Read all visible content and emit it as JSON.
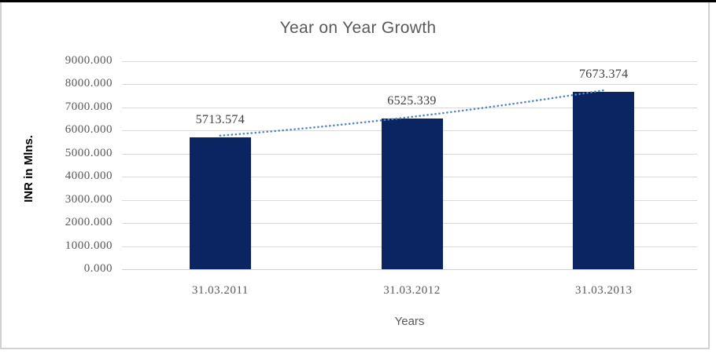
{
  "window": {
    "background": "#ffffff",
    "top_border_color": "#000000",
    "panel_border_color": "#d2d2d2"
  },
  "chart_data": {
    "type": "bar",
    "title": "Year on Year Growth",
    "xlabel": "Years",
    "ylabel": "INR in Mlns.",
    "categories": [
      "31.03.2011",
      "31.03.2012",
      "31.03.2013"
    ],
    "values": [
      5713.574,
      6525.339,
      7673.374
    ],
    "data_labels": [
      "5713.574",
      "6525.339",
      "7673.374"
    ],
    "ylim": [
      0,
      9000
    ],
    "ytick_step": 1000,
    "ytick_labels": [
      "0.000",
      "1000.000",
      "2000.000",
      "3000.000",
      "4000.000",
      "5000.000",
      "6000.000",
      "7000.000",
      "8000.000",
      "9000.000"
    ],
    "grid": true,
    "legend": "none",
    "trendline": {
      "type": "linear-dotted",
      "color": "#4e87c6"
    },
    "colors": {
      "bar": "#0b2562",
      "grid": "#d9d9d9",
      "axis_line": "#cfcfcf",
      "axis_text": "#595959",
      "title_text": "#595959",
      "data_label_text": "#404040",
      "ylabel_text": "#000000"
    }
  }
}
